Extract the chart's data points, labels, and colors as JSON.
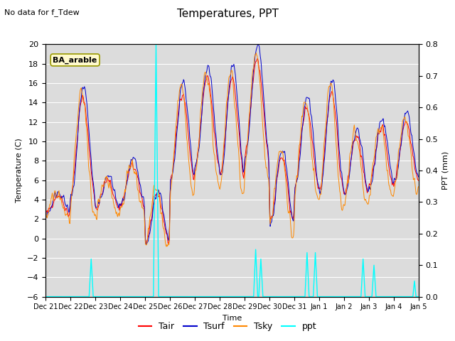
{
  "title": "Temperatures, PPT",
  "subtitle": "No data for f_Tdew",
  "label_box": "BA_arable",
  "xlabel": "Time",
  "ylabel_left": "Temperature (C)",
  "ylabel_right": "PPT (mm)",
  "ylim_left": [
    -6,
    20
  ],
  "ylim_right": [
    0.0,
    0.8
  ],
  "yticks_left": [
    -6,
    -4,
    -2,
    0,
    2,
    4,
    6,
    8,
    10,
    12,
    14,
    16,
    18,
    20
  ],
  "yticks_right": [
    0.0,
    0.1,
    0.2,
    0.3,
    0.4,
    0.5,
    0.6,
    0.7,
    0.8
  ],
  "xtick_labels": [
    "Dec 21",
    "Dec 22",
    "Dec 23",
    "Dec 24",
    "Dec 25",
    "Dec 26",
    "Dec 27",
    "Dec 28",
    "Dec 29",
    "Dec 30",
    "Dec 31",
    "Jan 1",
    "Jan 2",
    "Jan 3",
    "Jan 4",
    "Jan 5"
  ],
  "colors": {
    "Tair": "#ff0000",
    "Tsurf": "#0000cc",
    "Tsky": "#ff8800",
    "ppt": "#00ffff"
  },
  "legend_labels": [
    "Tair",
    "Tsurf",
    "Tsky",
    "ppt"
  ],
  "bg_color": "#dcdcdc",
  "grid_color": "#ffffff",
  "fig_bg": "#ffffff"
}
